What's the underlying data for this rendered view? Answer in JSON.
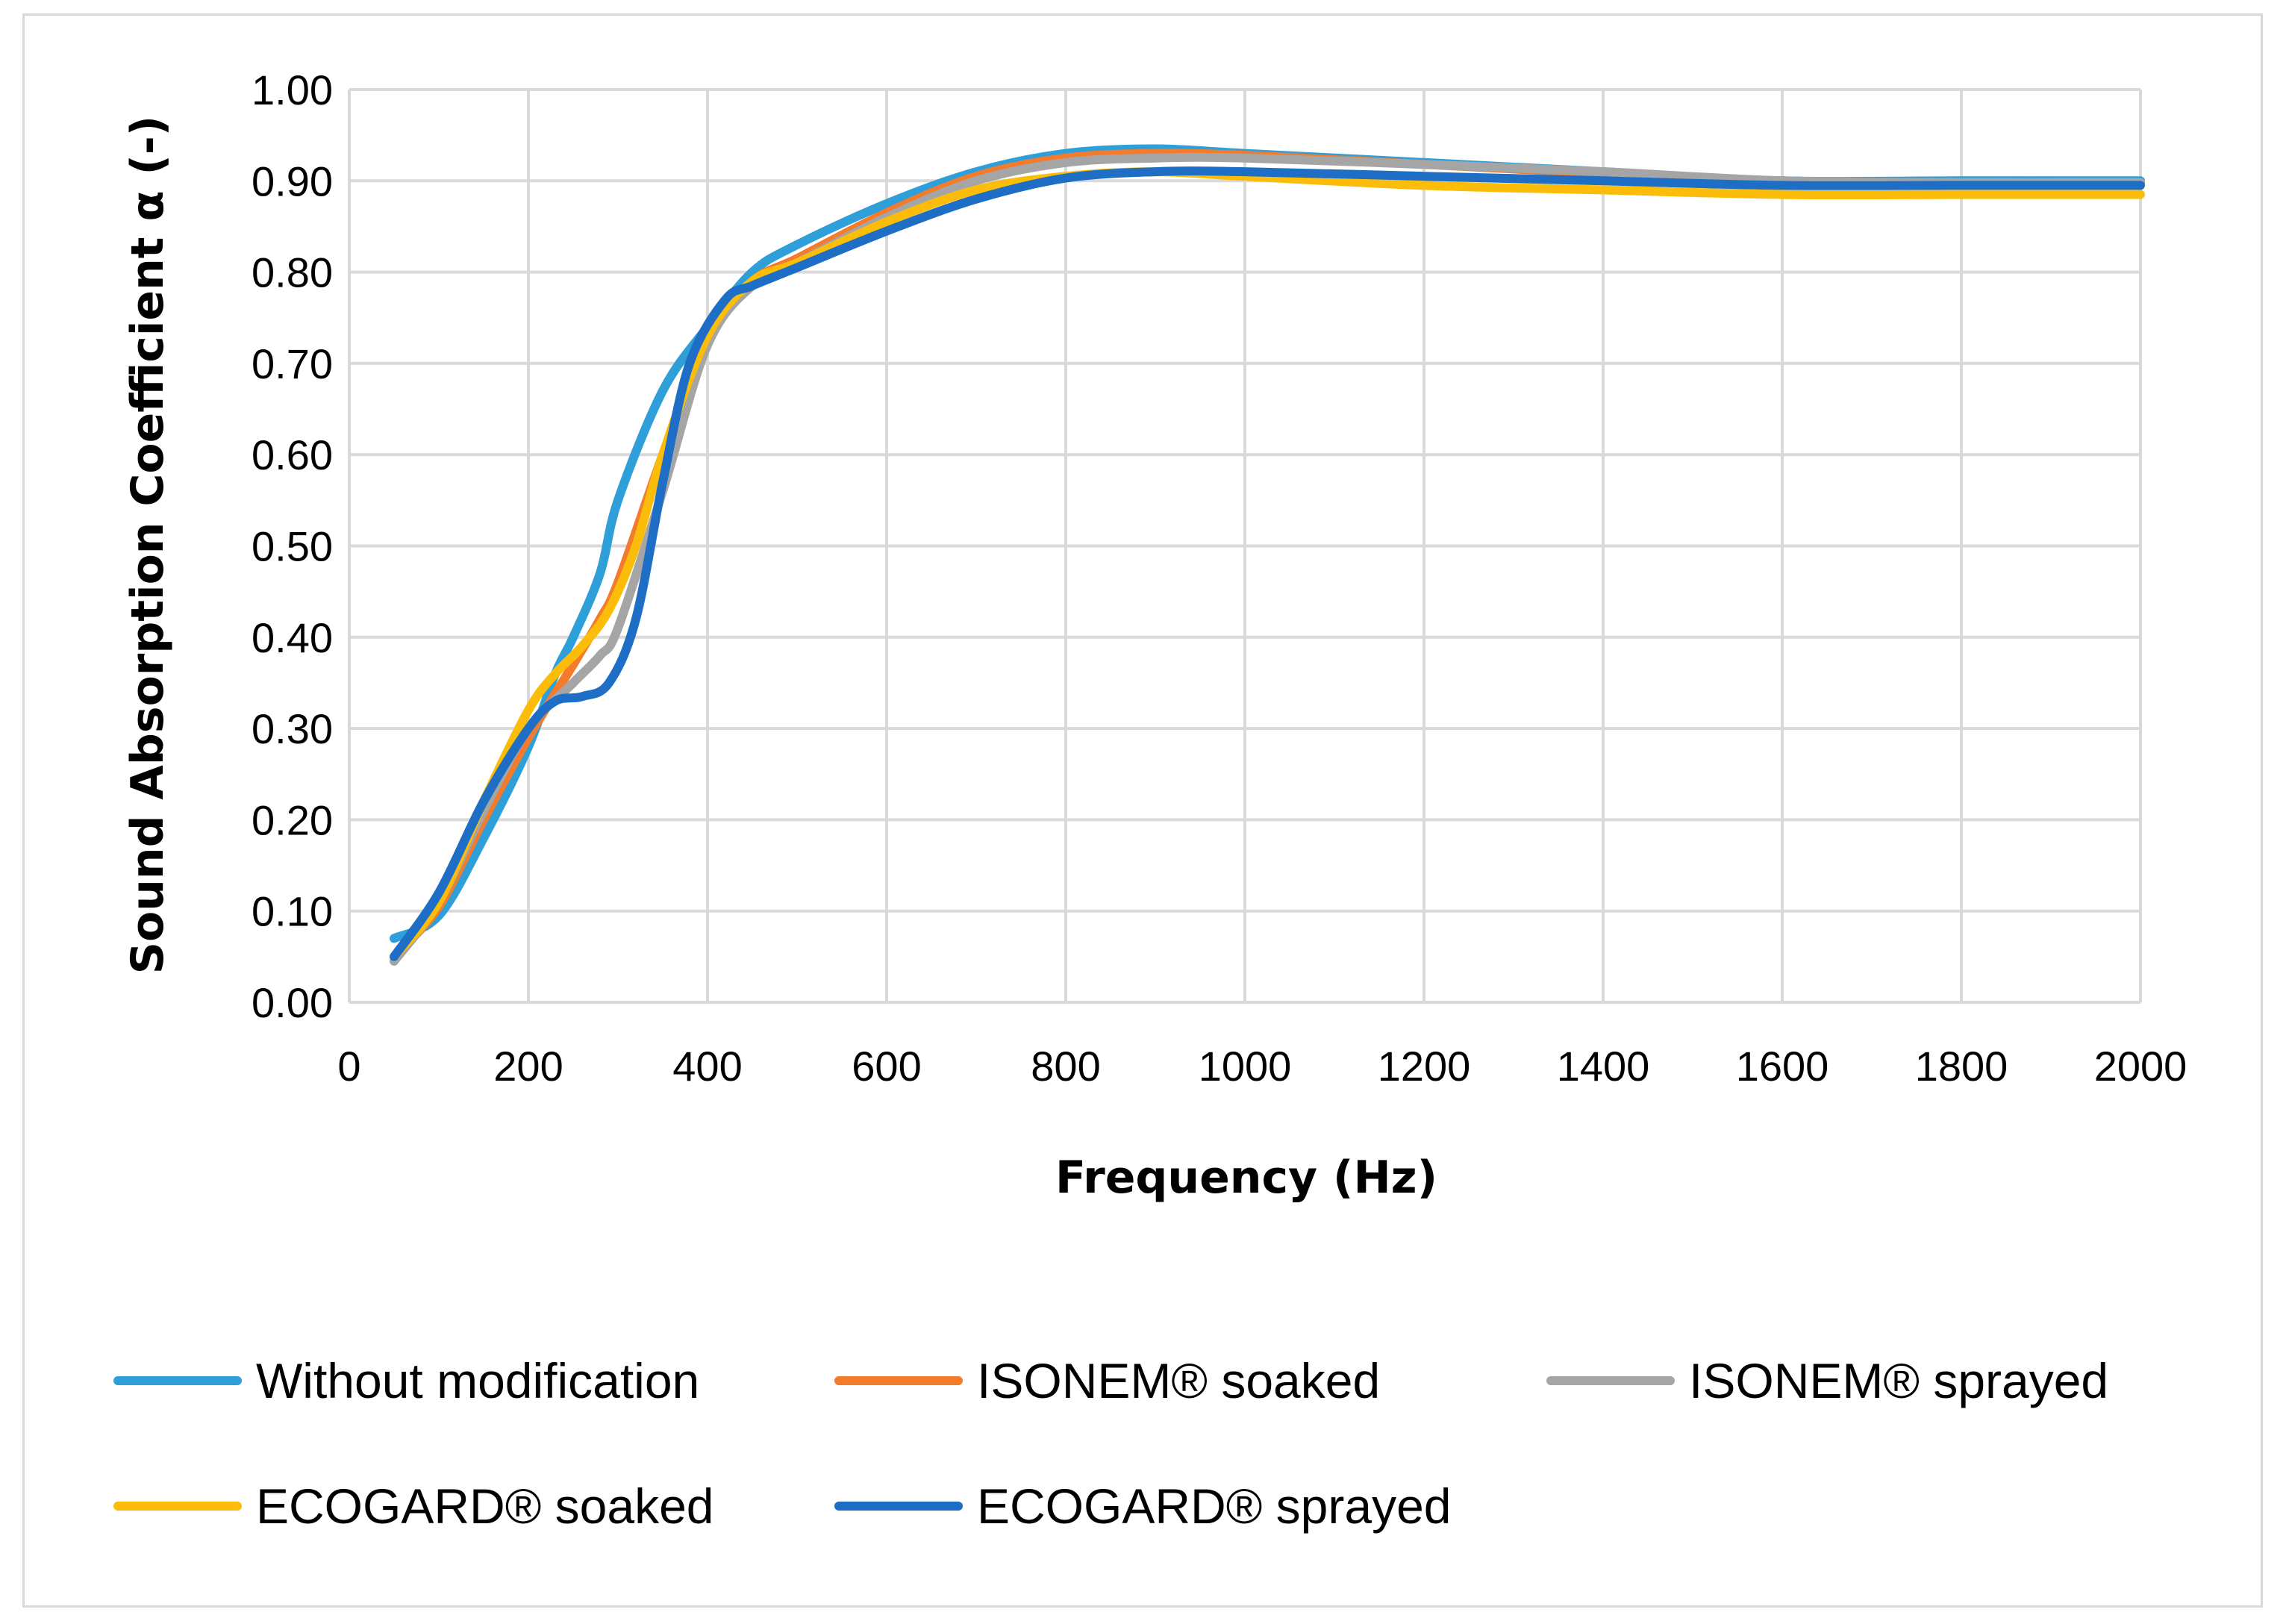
{
  "chart_data": {
    "type": "line",
    "title": "",
    "xlabel": "Frequency (Hz)",
    "ylabel": "Sound Absorption Coefficient α (-)",
    "xlim": [
      0,
      2000
    ],
    "ylim": [
      0,
      1.0
    ],
    "grid": true,
    "legend_position": "bottom",
    "x_ticks": [
      "0",
      "200",
      "400",
      "600",
      "800",
      "1000",
      "1200",
      "1400",
      "1600",
      "1800",
      "2000"
    ],
    "y_ticks": [
      "0.00",
      "0.10",
      "0.20",
      "0.30",
      "0.40",
      "0.50",
      "0.60",
      "0.70",
      "0.80",
      "0.90",
      "1.00"
    ],
    "series": [
      {
        "name": "Without modification",
        "color": "#2e9fd8",
        "x": [
          50,
          100,
          150,
          200,
          230,
          250,
          280,
          300,
          350,
          400,
          450,
          500,
          600,
          700,
          800,
          900,
          1000,
          1200,
          1400,
          1600,
          1800,
          2000
        ],
        "values": [
          0.07,
          0.095,
          0.18,
          0.28,
          0.36,
          0.4,
          0.47,
          0.55,
          0.67,
          0.74,
          0.8,
          0.83,
          0.875,
          0.91,
          0.93,
          0.935,
          0.93,
          0.92,
          0.91,
          0.9,
          0.9,
          0.9
        ]
      },
      {
        "name": "ISONEM® soaked",
        "color": "#f37b2b",
        "x": [
          50,
          100,
          150,
          200,
          250,
          280,
          300,
          350,
          400,
          450,
          500,
          600,
          700,
          800,
          900,
          1000,
          1200,
          1400,
          1600,
          1800,
          2000
        ],
        "values": [
          0.05,
          0.105,
          0.2,
          0.29,
          0.37,
          0.42,
          0.46,
          0.6,
          0.73,
          0.79,
          0.815,
          0.865,
          0.905,
          0.925,
          0.93,
          0.928,
          0.918,
          0.908,
          0.898,
          0.897,
          0.897
        ]
      },
      {
        "name": "ISONEM® sprayed",
        "color": "#a5a5a5",
        "x": [
          50,
          100,
          150,
          200,
          250,
          280,
          300,
          350,
          400,
          450,
          500,
          600,
          700,
          800,
          900,
          1000,
          1200,
          1400,
          1600,
          1800,
          2000
        ],
        "values": [
          0.045,
          0.11,
          0.21,
          0.3,
          0.35,
          0.38,
          0.41,
          0.56,
          0.72,
          0.785,
          0.81,
          0.86,
          0.9,
          0.92,
          0.925,
          0.925,
          0.918,
          0.91,
          0.9,
          0.898,
          0.898
        ]
      },
      {
        "name": "ECOGARD® soaked",
        "color": "#fbbd0a",
        "x": [
          50,
          100,
          150,
          200,
          230,
          260,
          290,
          320,
          350,
          400,
          450,
          500,
          600,
          700,
          800,
          900,
          1000,
          1200,
          1400,
          1600,
          1800,
          2000
        ],
        "values": [
          0.05,
          0.11,
          0.22,
          0.32,
          0.36,
          0.39,
          0.43,
          0.5,
          0.6,
          0.73,
          0.79,
          0.81,
          0.855,
          0.89,
          0.905,
          0.91,
          0.905,
          0.895,
          0.89,
          0.885,
          0.885,
          0.885
        ]
      },
      {
        "name": "ECOGARD® sprayed",
        "color": "#1f6ec5",
        "x": [
          50,
          100,
          150,
          200,
          230,
          260,
          290,
          320,
          350,
          380,
          420,
          450,
          500,
          600,
          700,
          800,
          900,
          1000,
          1200,
          1400,
          1600,
          1800,
          2000
        ],
        "values": [
          0.05,
          0.12,
          0.22,
          0.3,
          0.33,
          0.335,
          0.35,
          0.42,
          0.57,
          0.7,
          0.77,
          0.785,
          0.805,
          0.845,
          0.88,
          0.903,
          0.91,
          0.91,
          0.905,
          0.9,
          0.895,
          0.895,
          0.895
        ]
      }
    ]
  }
}
